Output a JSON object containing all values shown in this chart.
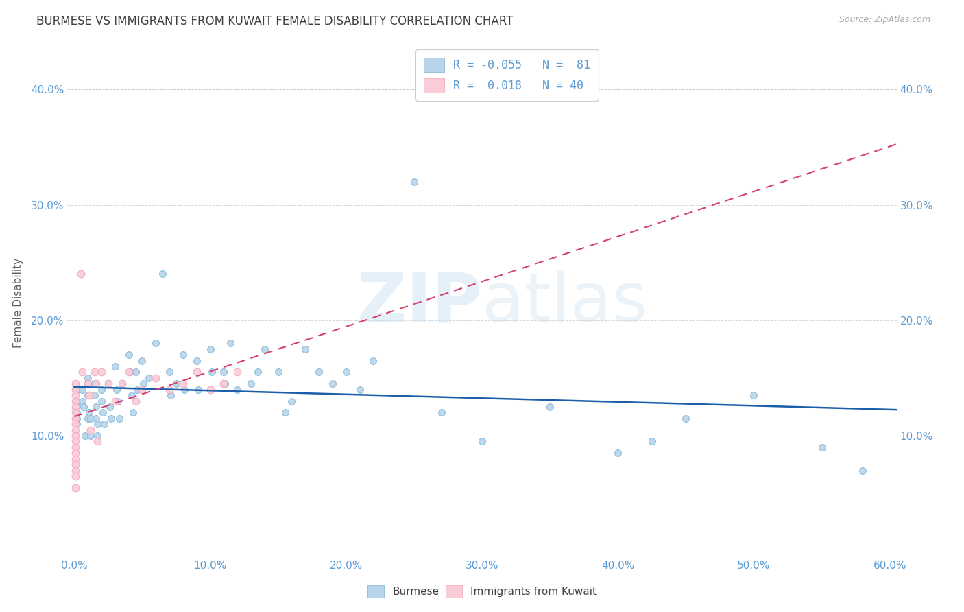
{
  "title": "BURMESE VS IMMIGRANTS FROM KUWAIT FEMALE DISABILITY CORRELATION CHART",
  "source": "Source: ZipAtlas.com",
  "ylabel": "Female Disability",
  "watermark": "ZIPatlas",
  "xlim": [
    -0.005,
    0.605
  ],
  "ylim": [
    -0.005,
    0.435
  ],
  "xticks": [
    0.0,
    0.1,
    0.2,
    0.3,
    0.4,
    0.5,
    0.6
  ],
  "yticks": [
    0.1,
    0.2,
    0.3,
    0.4
  ],
  "ytick_labels": [
    "10.0%",
    "20.0%",
    "30.0%",
    "40.0%"
  ],
  "xtick_labels": [
    "0.0%",
    "10.0%",
    "20.0%",
    "30.0%",
    "40.0%",
    "50.0%",
    "60.0%"
  ],
  "right_ytick_labels": [
    "10.0%",
    "20.0%",
    "30.0%",
    "40.0%"
  ],
  "right_yticks": [
    0.1,
    0.2,
    0.3,
    0.4
  ],
  "blue_color": "#7ab3d4",
  "blue_fill": "#b8d4ea",
  "pink_color": "#f4a0b8",
  "pink_fill": "#f9ccd8",
  "trend_blue": "#1a5fa8",
  "trend_pink": "#d44070",
  "title_color": "#404040",
  "axis_color": "#5b9bd5",
  "grid_color": "#cccccc",
  "burmese_x": [
    0.002,
    0.002,
    0.002,
    0.002,
    0.002,
    0.006,
    0.006,
    0.007,
    0.008,
    0.01,
    0.01,
    0.01,
    0.01,
    0.011,
    0.012,
    0.012,
    0.015,
    0.015,
    0.016,
    0.016,
    0.017,
    0.017,
    0.02,
    0.02,
    0.021,
    0.022,
    0.025,
    0.026,
    0.027,
    0.03,
    0.031,
    0.032,
    0.033,
    0.035,
    0.04,
    0.041,
    0.042,
    0.043,
    0.045,
    0.046,
    0.05,
    0.051,
    0.055,
    0.06,
    0.065,
    0.07,
    0.071,
    0.075,
    0.08,
    0.081,
    0.09,
    0.091,
    0.1,
    0.101,
    0.11,
    0.111,
    0.115,
    0.12,
    0.13,
    0.135,
    0.14,
    0.15,
    0.155,
    0.16,
    0.17,
    0.18,
    0.19,
    0.2,
    0.21,
    0.22,
    0.25,
    0.27,
    0.3,
    0.35,
    0.4,
    0.425,
    0.45,
    0.5,
    0.55,
    0.58
  ],
  "burmese_y": [
    0.14,
    0.13,
    0.12,
    0.115,
    0.11,
    0.14,
    0.13,
    0.125,
    0.1,
    0.15,
    0.145,
    0.135,
    0.115,
    0.12,
    0.115,
    0.1,
    0.145,
    0.135,
    0.125,
    0.115,
    0.11,
    0.1,
    0.14,
    0.13,
    0.12,
    0.11,
    0.145,
    0.125,
    0.115,
    0.16,
    0.14,
    0.13,
    0.115,
    0.145,
    0.17,
    0.155,
    0.135,
    0.12,
    0.155,
    0.14,
    0.165,
    0.145,
    0.15,
    0.18,
    0.24,
    0.155,
    0.135,
    0.145,
    0.17,
    0.14,
    0.165,
    0.14,
    0.175,
    0.155,
    0.155,
    0.145,
    0.18,
    0.14,
    0.145,
    0.155,
    0.175,
    0.155,
    0.12,
    0.13,
    0.175,
    0.155,
    0.145,
    0.155,
    0.14,
    0.165,
    0.32,
    0.12,
    0.095,
    0.125,
    0.085,
    0.095,
    0.115,
    0.135,
    0.09,
    0.07
  ],
  "kuwait_x": [
    0.001,
    0.001,
    0.001,
    0.001,
    0.001,
    0.001,
    0.001,
    0.001,
    0.001,
    0.001,
    0.001,
    0.001,
    0.001,
    0.001,
    0.001,
    0.001,
    0.001,
    0.001,
    0.005,
    0.006,
    0.01,
    0.011,
    0.012,
    0.015,
    0.016,
    0.017,
    0.02,
    0.025,
    0.03,
    0.035,
    0.04,
    0.045,
    0.05,
    0.06,
    0.07,
    0.08,
    0.09,
    0.1,
    0.11,
    0.12
  ],
  "kuwait_y": [
    0.145,
    0.14,
    0.135,
    0.13,
    0.125,
    0.12,
    0.115,
    0.11,
    0.105,
    0.1,
    0.095,
    0.09,
    0.085,
    0.08,
    0.075,
    0.07,
    0.065,
    0.055,
    0.24,
    0.155,
    0.145,
    0.135,
    0.105,
    0.155,
    0.145,
    0.095,
    0.155,
    0.145,
    0.13,
    0.145,
    0.155,
    0.13,
    0.14,
    0.15,
    0.14,
    0.145,
    0.155,
    0.14,
    0.145,
    0.155
  ],
  "burmese_sizes": 50,
  "kuwait_sizes": 60
}
